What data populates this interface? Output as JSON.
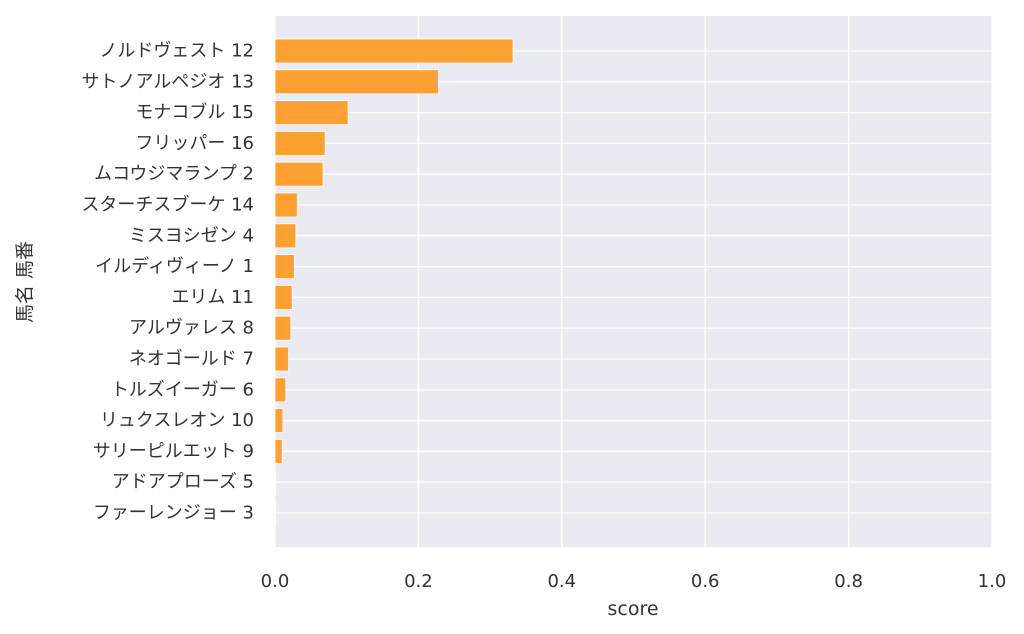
{
  "chart_data": {
    "type": "bar",
    "orientation": "horizontal",
    "categories": [
      "ノルドヴェスト 12",
      "サトノアルペジオ 13",
      "モナコブル 15",
      "フリッパー 16",
      "ムコウジマランプ 2",
      "スターチスブーケ 14",
      "ミスヨシゼン 4",
      "イルディヴィーノ 1",
      "エリム 11",
      "アルヴァレス 8",
      "ネオゴールド 7",
      "トルズイーガー 6",
      "リュクスレオン 10",
      "サリーピルエット 9",
      "アドアプローズ 5",
      "ファーレンジョー 3"
    ],
    "values": [
      0.332,
      0.228,
      0.102,
      0.07,
      0.067,
      0.031,
      0.029,
      0.027,
      0.024,
      0.022,
      0.019,
      0.015,
      0.011,
      0.01,
      0.001,
      0.001
    ],
    "xlabel": "score",
    "ylabel": "馬名 馬番",
    "xlim": [
      0.0,
      1.0
    ],
    "xticks": [
      "0.0",
      "0.2",
      "0.4",
      "0.6",
      "0.8",
      "1.0"
    ],
    "grid": true,
    "bar_color": "#ffa033",
    "bar_edge_color": "#ffffff",
    "plot_background": "#eaeaf2",
    "grid_color": "#ffffff"
  }
}
